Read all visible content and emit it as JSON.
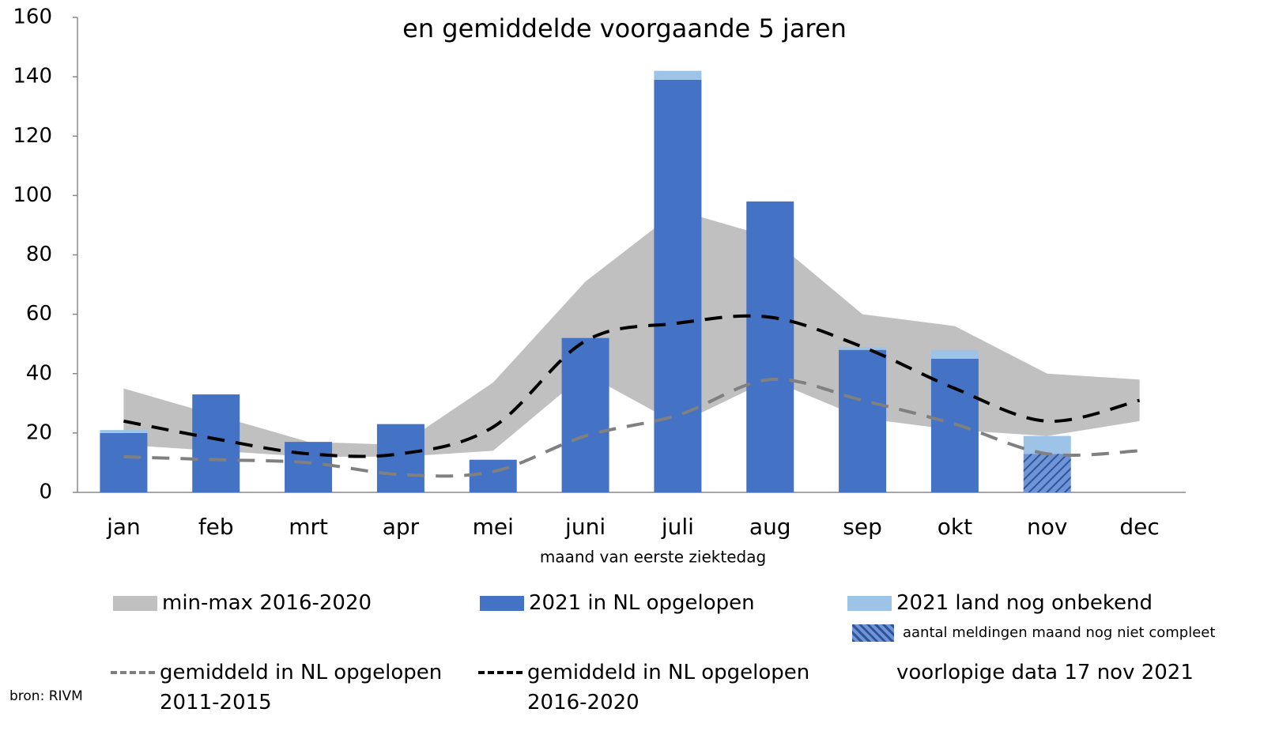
{
  "chart_data": {
    "type": "combo",
    "title": "en gemiddelde voorgaande 5 jaren",
    "x_label": "maand van eerste ziektedag",
    "categories": [
      "jan",
      "feb",
      "mrt",
      "apr",
      "mei",
      "juni",
      "juli",
      "aug",
      "sep",
      "okt",
      "nov",
      "dec"
    ],
    "ylim": [
      0,
      160
    ],
    "yticks": [
      0,
      20,
      40,
      60,
      80,
      100,
      120,
      140,
      160
    ],
    "grid": false,
    "series": [
      {
        "name": "min-max 2016-2020",
        "type": "band",
        "color": "#c0c0c0",
        "low": [
          16,
          14,
          12,
          12,
          14,
          40,
          23,
          38,
          25,
          21,
          19,
          24
        ],
        "high": [
          35,
          26,
          17,
          16,
          37,
          71,
          95,
          86,
          60,
          56,
          40,
          38
        ]
      },
      {
        "name": "2021 in NL opgelopen",
        "type": "bar",
        "color": "#4472c4",
        "values": [
          20,
          33,
          17,
          23,
          11,
          52,
          139,
          98,
          48,
          45,
          13,
          null
        ],
        "hatched": [
          false,
          false,
          false,
          false,
          false,
          false,
          false,
          false,
          false,
          false,
          true,
          false
        ]
      },
      {
        "name": "2021 land nog onbekend",
        "type": "bar",
        "stacked": true,
        "color": "#9dc3e6",
        "values": [
          1,
          0,
          0,
          0,
          0,
          0,
          3,
          0,
          1,
          3,
          6,
          null
        ]
      },
      {
        "name": "gemiddeld  in NL opgelopen\n2011-2015",
        "type": "line",
        "dashed": true,
        "color": "#808080",
        "values": [
          12,
          11,
          10,
          6,
          7,
          19,
          26,
          38,
          31,
          23,
          13,
          14
        ]
      },
      {
        "name": "gemiddeld  in NL opgelopen\n2016-2020",
        "type": "line",
        "dashed": true,
        "color": "#000000",
        "values": [
          24,
          18,
          13,
          13,
          22,
          51,
          57,
          59,
          49,
          35,
          24,
          31
        ]
      }
    ],
    "hatch_label": "aantal meldingen maand nog niet compleet",
    "note": "voorlopige data 17 nov 2021",
    "source": "bron: RIVM"
  }
}
